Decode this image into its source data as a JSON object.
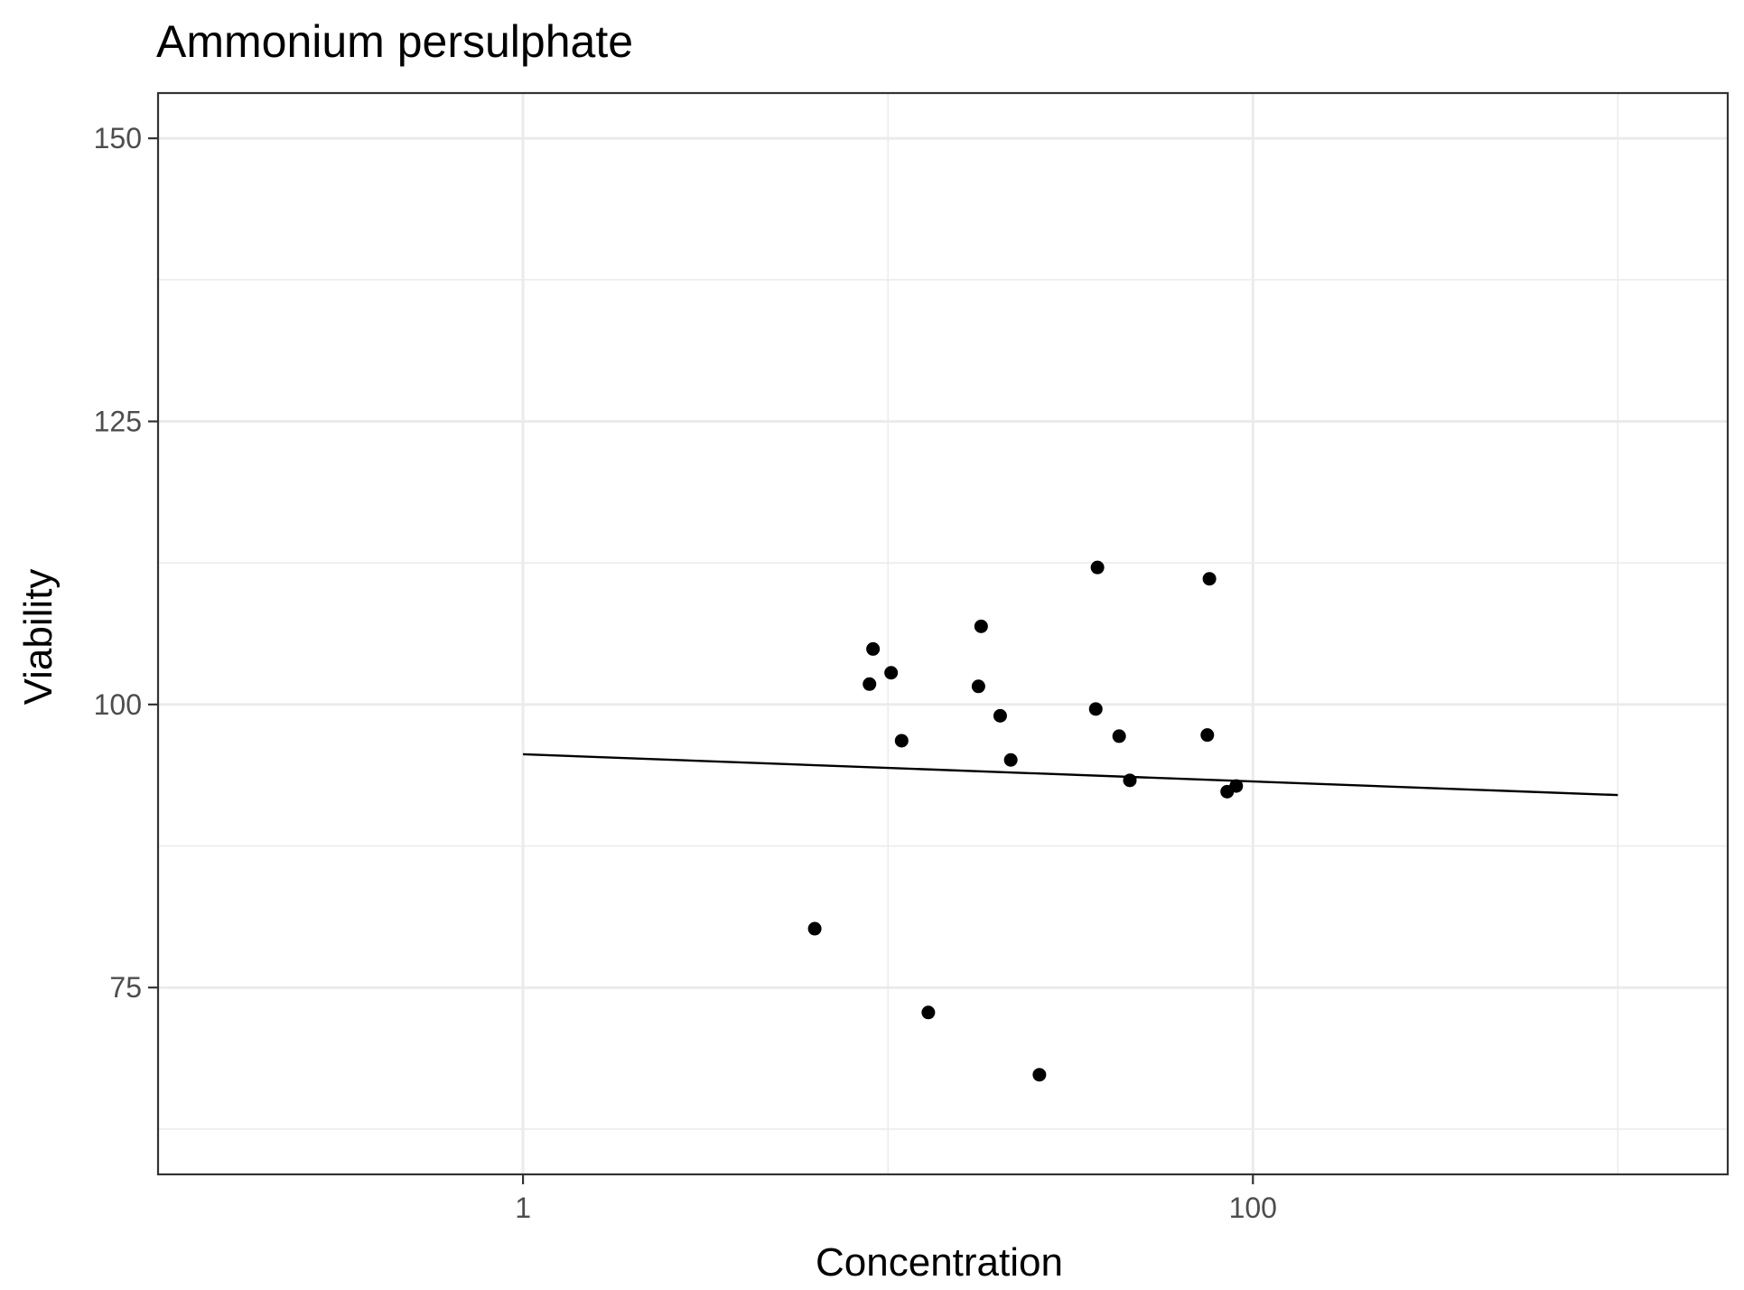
{
  "chart_data": {
    "type": "scatter",
    "title": "Ammonium persulphate",
    "xlabel": "Concentration",
    "ylabel": "Viability",
    "x_scale": "log10",
    "xlim": [
      0.1,
      2000
    ],
    "ylim": [
      58.5,
      154
    ],
    "x_major_ticks": [
      1,
      100
    ],
    "x_tick_labels": [
      "1",
      "100"
    ],
    "x_minor_ticks": [
      0.1,
      10,
      1000
    ],
    "y_major_ticks": [
      75,
      100,
      125,
      150
    ],
    "y_tick_labels": [
      "75",
      "100",
      "125",
      "150"
    ],
    "y_minor_ticks": [
      62.5,
      87.5,
      112.5,
      137.5
    ],
    "grid": true,
    "legend": "none",
    "points": [
      {
        "x": 6.3,
        "y": 80.2
      },
      {
        "x": 8.9,
        "y": 101.8
      },
      {
        "x": 9.1,
        "y": 104.9
      },
      {
        "x": 10.2,
        "y": 102.8
      },
      {
        "x": 10.9,
        "y": 96.8
      },
      {
        "x": 12.9,
        "y": 72.8
      },
      {
        "x": 17.7,
        "y": 101.6
      },
      {
        "x": 18.0,
        "y": 106.9
      },
      {
        "x": 20.3,
        "y": 99.0
      },
      {
        "x": 21.7,
        "y": 95.1
      },
      {
        "x": 26.0,
        "y": 67.3
      },
      {
        "x": 37.5,
        "y": 112.1
      },
      {
        "x": 37.1,
        "y": 99.6
      },
      {
        "x": 43.0,
        "y": 97.2
      },
      {
        "x": 46.0,
        "y": 93.3
      },
      {
        "x": 76.0,
        "y": 111.1
      },
      {
        "x": 75.0,
        "y": 97.3
      },
      {
        "x": 85.0,
        "y": 92.3
      },
      {
        "x": 90.0,
        "y": 92.8
      }
    ],
    "fit_line": {
      "x": [
        1,
        1000
      ],
      "y": [
        95.6,
        92.0
      ]
    }
  }
}
